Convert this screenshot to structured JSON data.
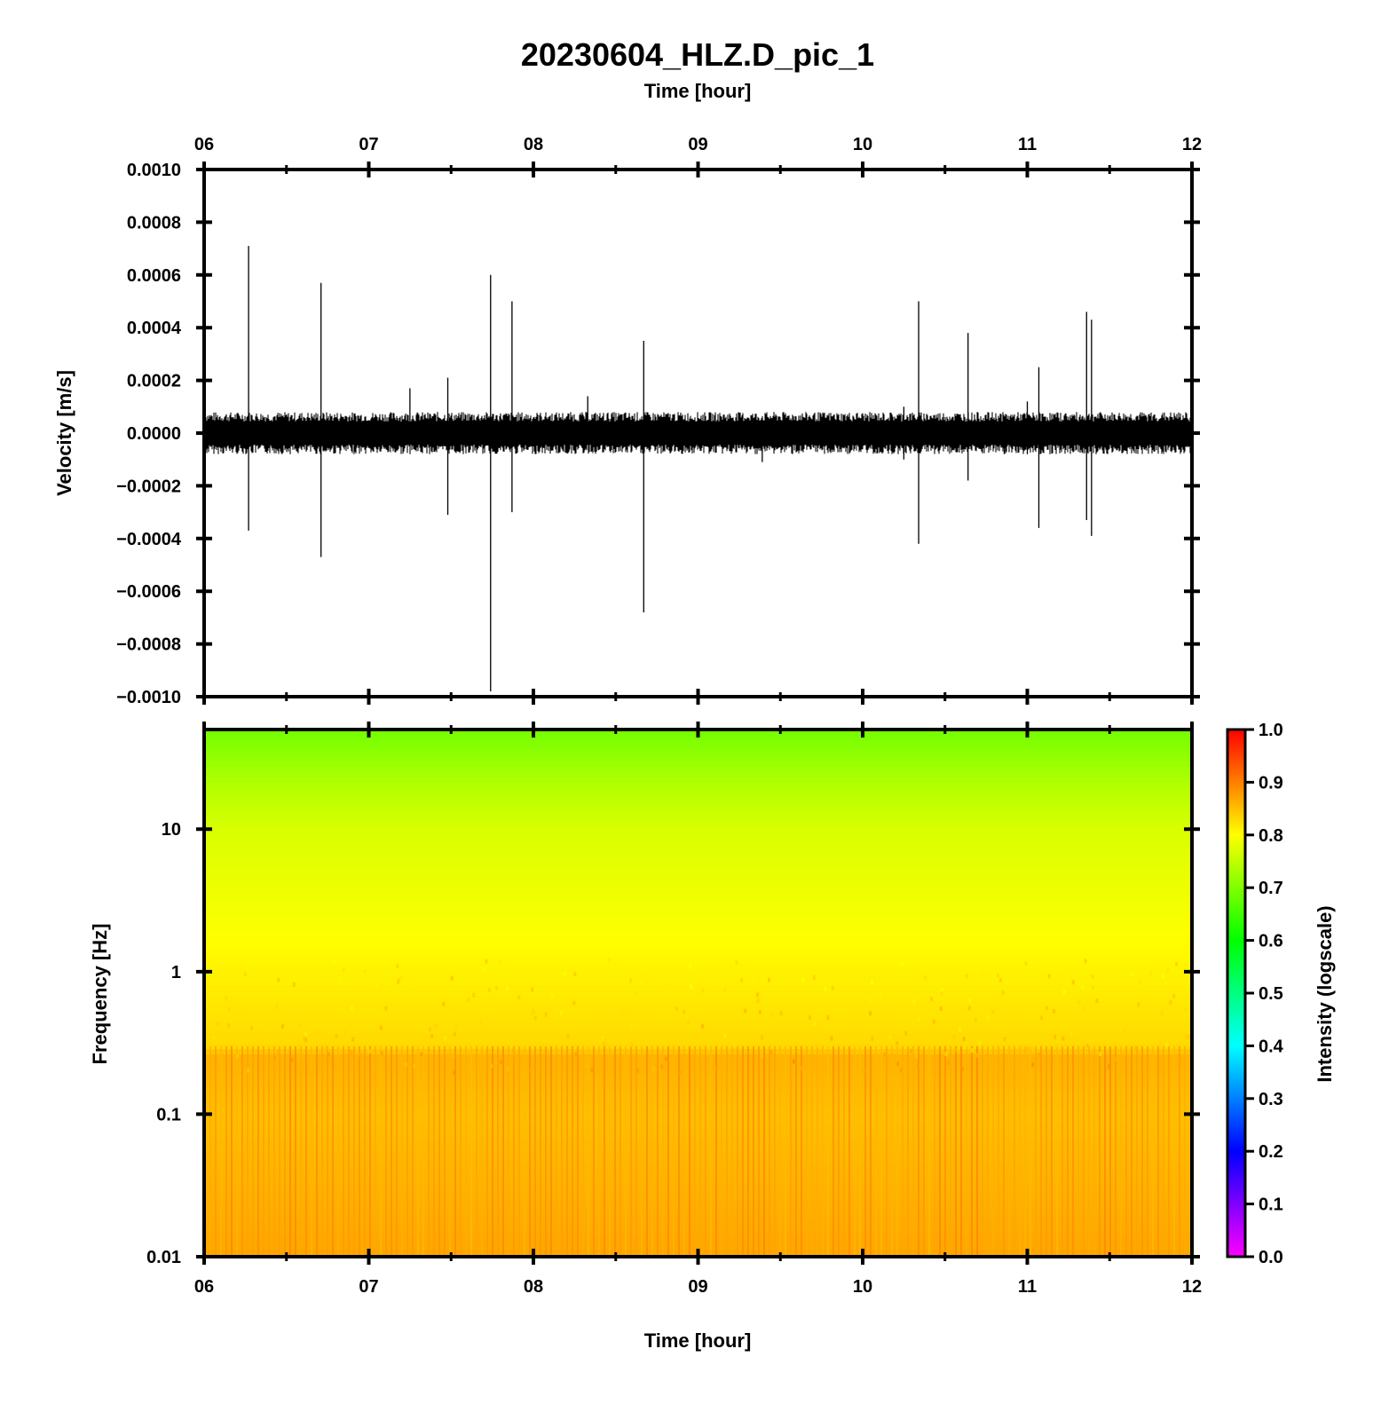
{
  "chart_data": [
    {
      "type": "line",
      "title": "20230604_HLZ.D_pic_1",
      "xlabel": "Time [hour]",
      "xlabel_position": "top",
      "ylabel": "Velocity [m/s]",
      "x_ticks": [
        "06",
        "07",
        "08",
        "09",
        "10",
        "11",
        "12"
      ],
      "xlim": [
        6,
        12
      ],
      "y_ticks": [
        "0.0010",
        "0.0008",
        "0.0006",
        "0.0004",
        "0.0002",
        "0.0000",
        "−0.0002",
        "−0.0004",
        "−0.0006",
        "−0.0008",
        "−0.0010"
      ],
      "ylim": [
        -0.001,
        0.001
      ],
      "line_color": "#000000",
      "background_noise_amplitude": 8e-05,
      "spikes": [
        {
          "x": 6.27,
          "max": 0.00071,
          "min": -0.00037
        },
        {
          "x": 6.71,
          "max": 0.00057,
          "min": -0.00047
        },
        {
          "x": 7.25,
          "max": 0.00017,
          "min": -5e-05
        },
        {
          "x": 7.48,
          "max": 0.00021,
          "min": -0.00031
        },
        {
          "x": 7.74,
          "max": 0.0006,
          "min": -0.00098
        },
        {
          "x": 7.87,
          "max": 0.0005,
          "min": -0.0003
        },
        {
          "x": 8.33,
          "max": 0.00014,
          "min": -4e-05
        },
        {
          "x": 8.67,
          "max": 0.00035,
          "min": -0.00068
        },
        {
          "x": 9.39,
          "max": 5e-05,
          "min": -0.00011
        },
        {
          "x": 10.25,
          "max": 0.0001,
          "min": -0.0001
        },
        {
          "x": 10.34,
          "max": 0.0005,
          "min": -0.00042
        },
        {
          "x": 10.64,
          "max": 0.00038,
          "min": -0.00018
        },
        {
          "x": 10.86,
          "max": 5e-05,
          "min": -8e-05
        },
        {
          "x": 11.0,
          "max": 0.00012,
          "min": -8e-05
        },
        {
          "x": 11.07,
          "max": 0.00025,
          "min": -0.00036
        },
        {
          "x": 11.36,
          "max": 0.00046,
          "min": -0.00033
        },
        {
          "x": 11.39,
          "max": 0.00043,
          "min": -0.00039
        }
      ]
    },
    {
      "type": "heatmap",
      "xlabel": "Time [hour]",
      "ylabel": "Frequency [Hz]",
      "x_ticks": [
        "06",
        "07",
        "08",
        "09",
        "10",
        "11",
        "12"
      ],
      "xlim": [
        6,
        12
      ],
      "y_scale": "log",
      "y_ticks": [
        "10",
        "1",
        "0.1",
        "0.01"
      ],
      "ylim": [
        0.01,
        50
      ],
      "intensity_profile": [
        {
          "freq": 50,
          "intensity": 0.69
        },
        {
          "freq": 20,
          "intensity": 0.74
        },
        {
          "freq": 10,
          "intensity": 0.77
        },
        {
          "freq": 3,
          "intensity": 0.79
        },
        {
          "freq": 1,
          "intensity": 0.81
        },
        {
          "freq": 0.3,
          "intensity": 0.83
        },
        {
          "freq": 0.25,
          "intensity": 0.86
        },
        {
          "freq": 0.1,
          "intensity": 0.85
        },
        {
          "freq": 0.01,
          "intensity": 0.87
        }
      ],
      "colorbar": {
        "label": "Intensity (logscale)",
        "ticks": [
          "1.0",
          "0.9",
          "0.8",
          "0.7",
          "0.6",
          "0.5",
          "0.4",
          "0.3",
          "0.2",
          "0.1",
          "0.0"
        ],
        "range": [
          0,
          1
        ],
        "colors": [
          "#ff00ff",
          "#0000ff",
          "#00ffff",
          "#00ff00",
          "#ffff00",
          "#ff0000"
        ]
      }
    }
  ]
}
